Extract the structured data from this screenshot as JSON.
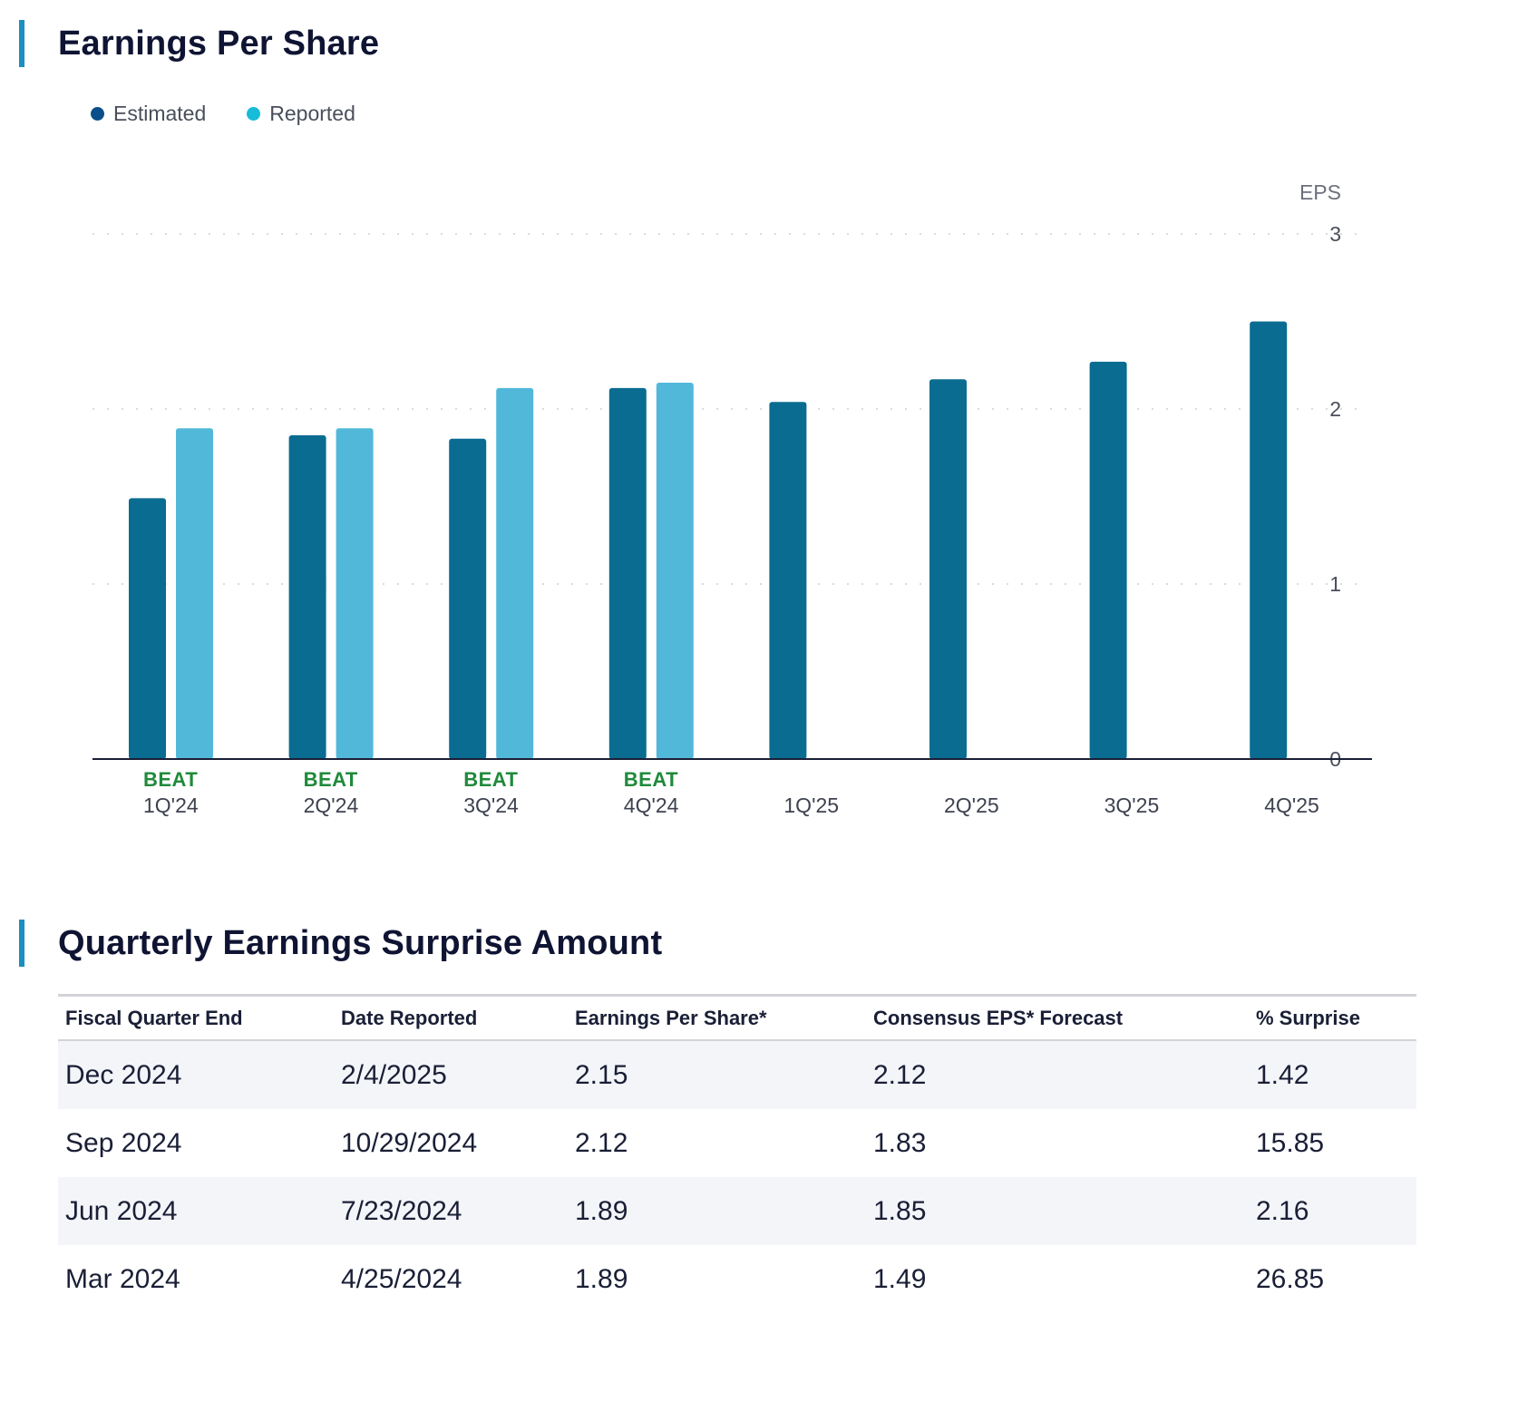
{
  "eps_section": {
    "title": "Earnings Per Share"
  },
  "surprise_section": {
    "title": "Quarterly Earnings Surprise Amount"
  },
  "colors": {
    "accent": "#1a8fc0",
    "estimated_bar": "#0b6c91",
    "reported_bar": "#52b8da",
    "estimated_legend": "#0b4f8a",
    "reported_legend": "#16bcd8",
    "beat": "#1f8a3a"
  },
  "chart_data": {
    "type": "bar",
    "title": "Earnings Per Share",
    "ylabel": "EPS",
    "xlabel": "",
    "ylim": [
      0,
      3
    ],
    "yticks": [
      0,
      1,
      2,
      3
    ],
    "grid": true,
    "legend_position": "top-left",
    "categories": [
      "1Q'24",
      "2Q'24",
      "3Q'24",
      "4Q'24",
      "1Q'25",
      "2Q'25",
      "3Q'25",
      "4Q'25"
    ],
    "series": [
      {
        "name": "Estimated",
        "values": [
          1.49,
          1.85,
          1.83,
          2.12,
          2.04,
          2.17,
          2.27,
          2.5
        ]
      },
      {
        "name": "Reported",
        "values": [
          1.89,
          1.89,
          2.12,
          2.15,
          null,
          null,
          null,
          null
        ]
      }
    ],
    "annotations": [
      "BEAT",
      "BEAT",
      "BEAT",
      "BEAT",
      "",
      "",
      "",
      ""
    ]
  },
  "table": {
    "headers": [
      "Fiscal Quarter End",
      "Date Reported",
      "Earnings Per Share*",
      "Consensus EPS* Forecast",
      "% Surprise"
    ],
    "rows": [
      [
        "Dec 2024",
        "2/4/2025",
        "2.15",
        "2.12",
        "1.42"
      ],
      [
        "Sep 2024",
        "10/29/2024",
        "2.12",
        "1.83",
        "15.85"
      ],
      [
        "Jun 2024",
        "7/23/2024",
        "1.89",
        "1.85",
        "2.16"
      ],
      [
        "Mar 2024",
        "4/25/2024",
        "1.89",
        "1.49",
        "26.85"
      ]
    ]
  }
}
